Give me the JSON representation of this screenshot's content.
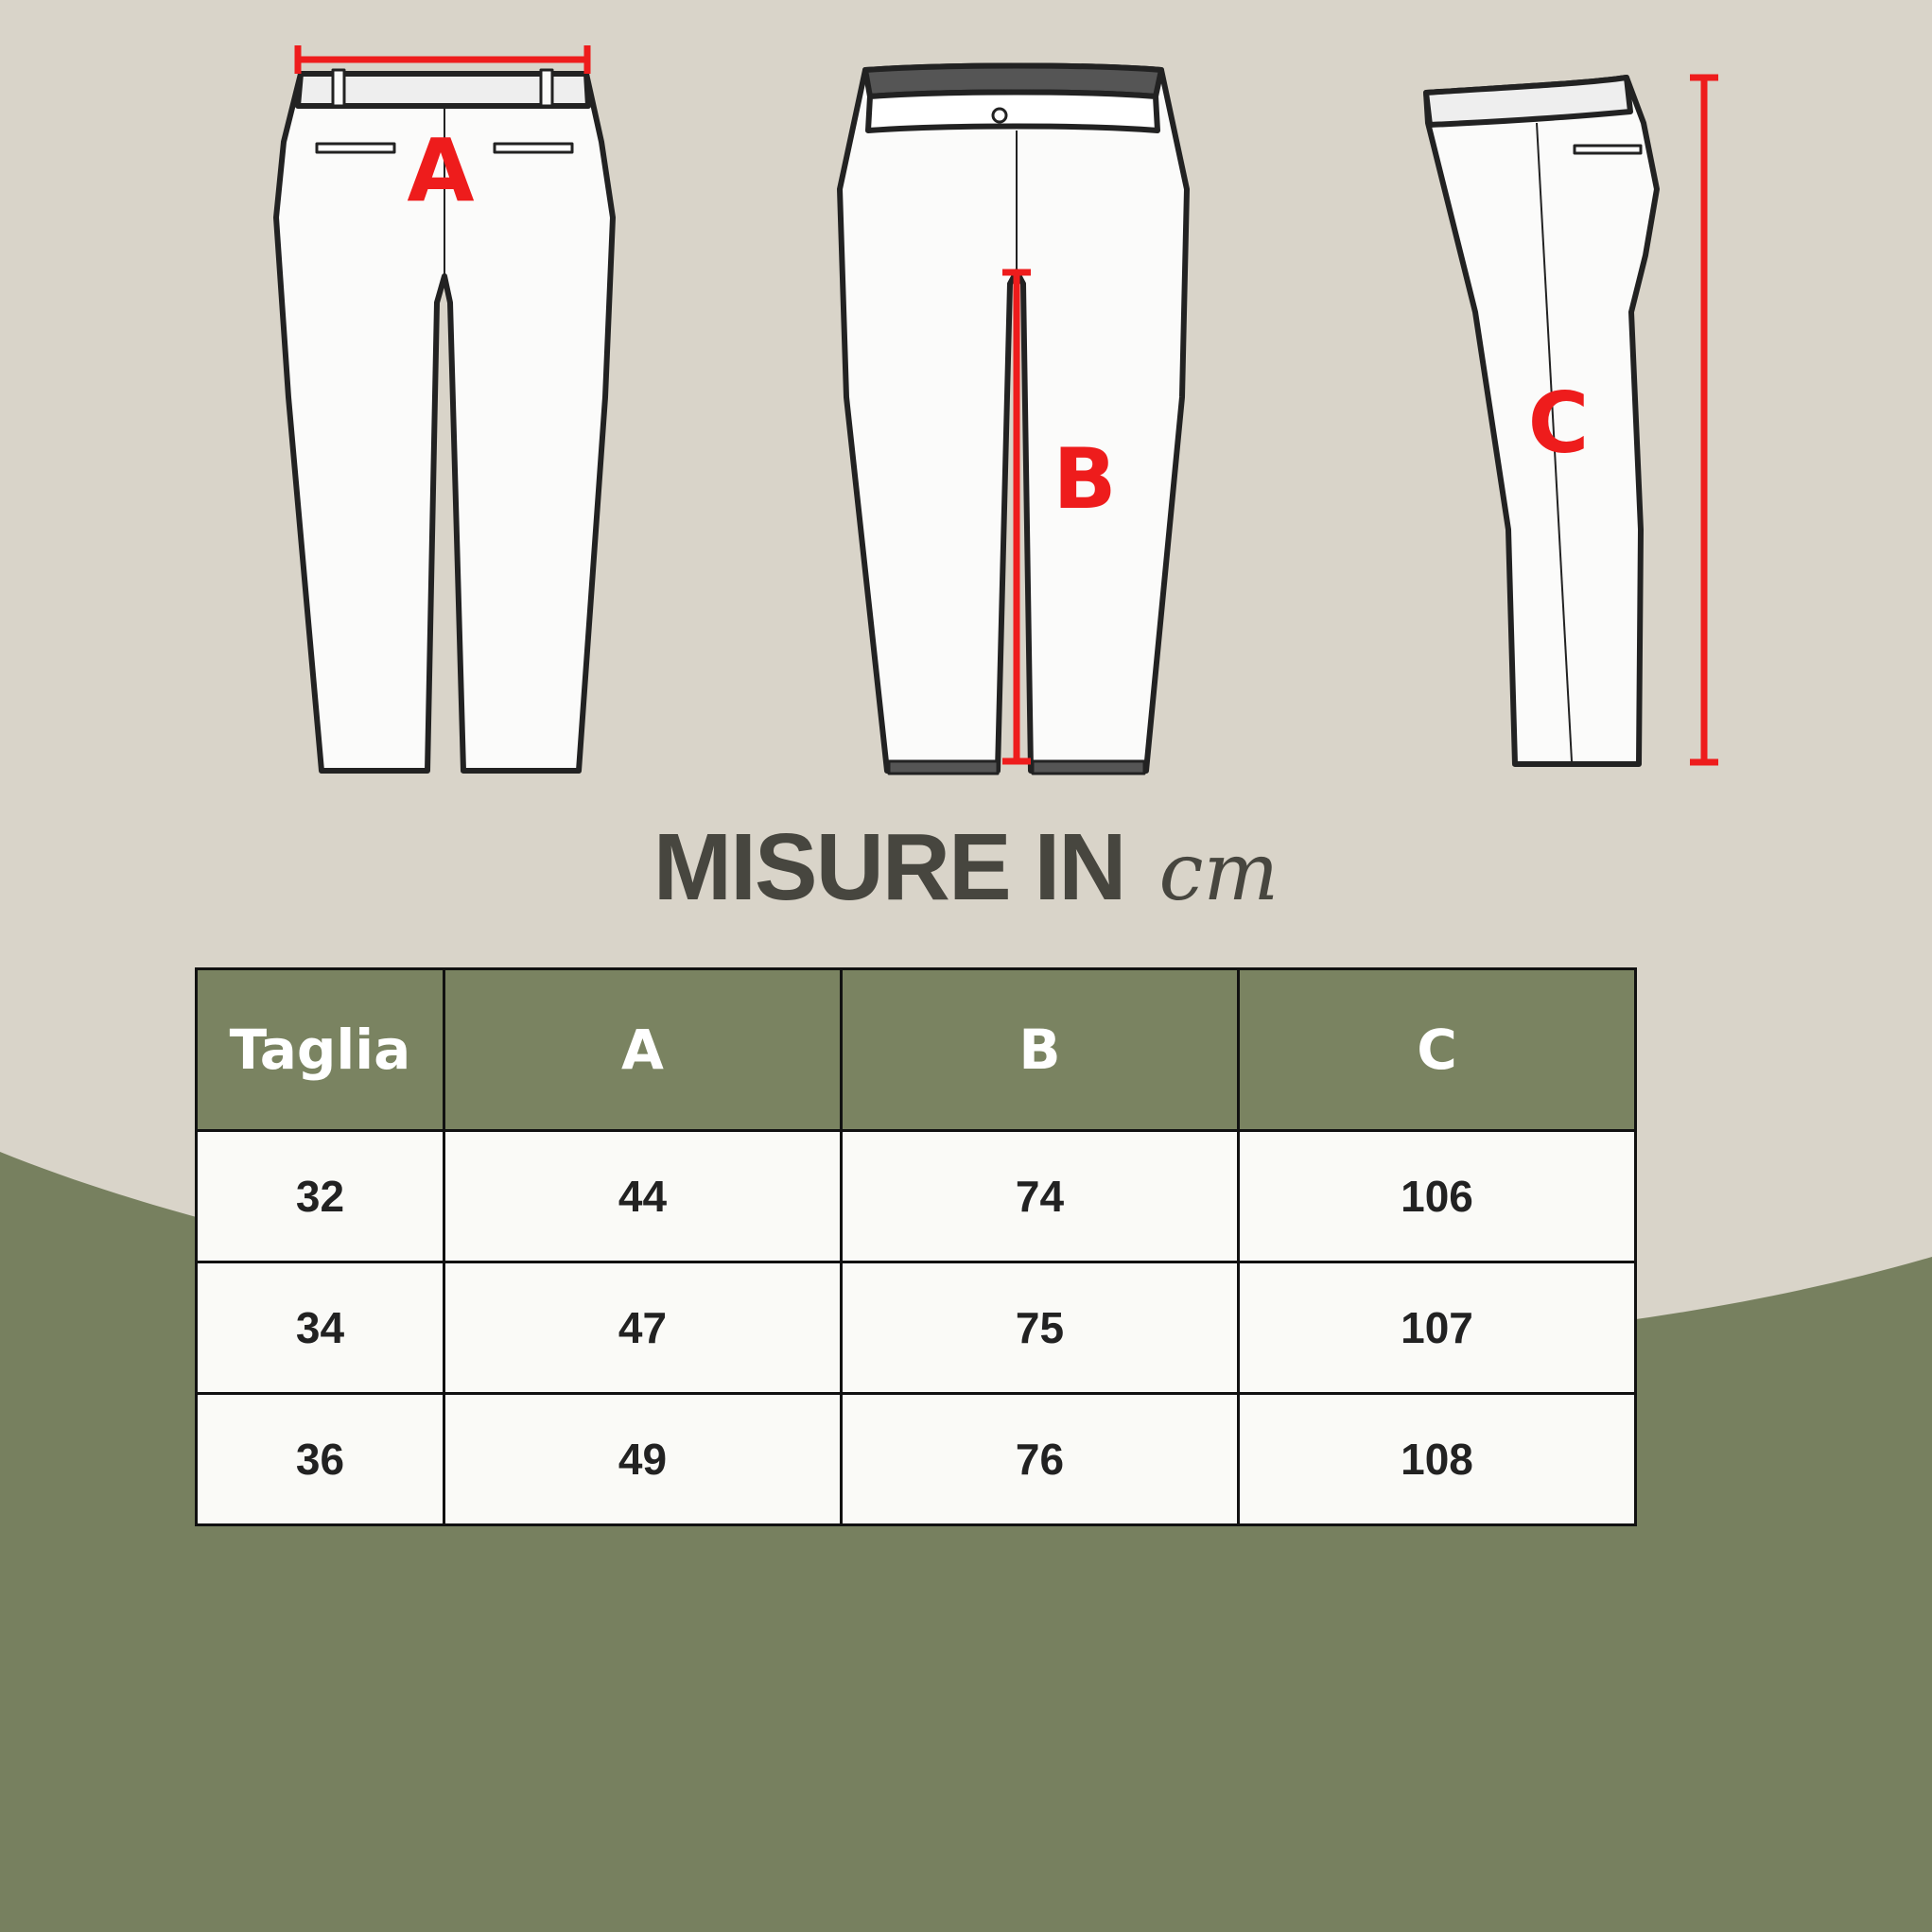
{
  "colors": {
    "background_top": "#d9d4c9",
    "background_bottom": "#77805f",
    "header": "#7a8361",
    "measure_red": "#ee1c1c",
    "title": "#47463f"
  },
  "diagram": {
    "labels": {
      "a": "A",
      "b": "B",
      "c": "C"
    }
  },
  "title": {
    "main": "MISURE IN",
    "unit": "cm"
  },
  "table": {
    "headers": [
      "Taglia",
      "A",
      "B",
      "C"
    ],
    "rows": [
      [
        "32",
        "44",
        "74",
        "106"
      ],
      [
        "34",
        "47",
        "75",
        "107"
      ],
      [
        "36",
        "49",
        "76",
        "108"
      ]
    ]
  }
}
